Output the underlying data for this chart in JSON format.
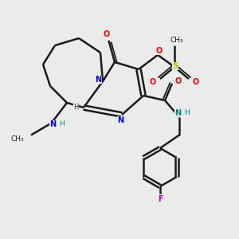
{
  "bg_color": "#ebebeb",
  "bond_color": "#1a1a1a",
  "bond_width": 1.8,
  "N_color": "#0000ee",
  "O_color": "#ee0000",
  "S_color": "#bbbb00",
  "F_color": "#bb00bb",
  "NH_color": "#008888",
  "figsize": [
    3.0,
    3.0
  ],
  "dpi": 100,
  "xlim": [
    0,
    10
  ],
  "ylim": [
    0,
    10
  ]
}
